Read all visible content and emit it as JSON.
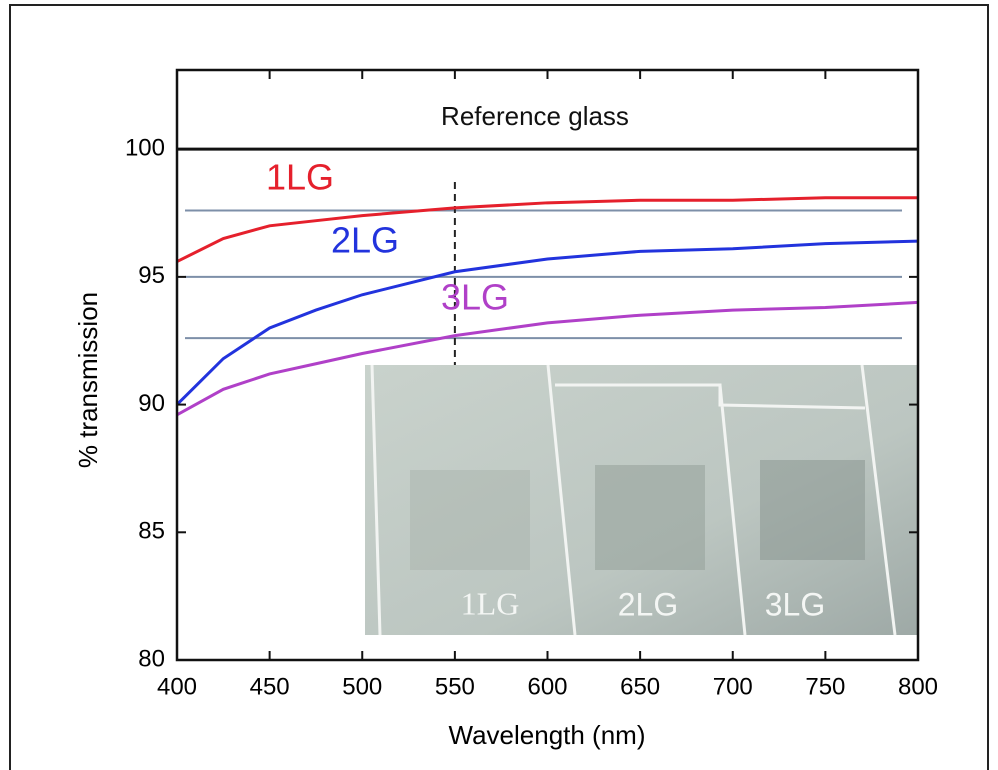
{
  "chart_data": {
    "type": "line",
    "xlabel": "Wavelength (nm)",
    "ylabel": "% transmission",
    "x": [
      400,
      425,
      450,
      475,
      500,
      550,
      600,
      650,
      700,
      750,
      800
    ],
    "series": [
      {
        "name": "Reference glass",
        "color": "#111111",
        "values": [
          100,
          100,
          100,
          100,
          100,
          100,
          100,
          100,
          100,
          100,
          100
        ]
      },
      {
        "name": "1LG",
        "color": "#e5202c",
        "values": [
          95.6,
          96.5,
          97.0,
          97.2,
          97.4,
          97.7,
          97.9,
          98.0,
          98.0,
          98.1,
          98.1
        ]
      },
      {
        "name": "2LG",
        "color": "#2233dd",
        "values": [
          90.0,
          91.8,
          93.0,
          93.7,
          94.3,
          95.2,
          95.7,
          96.0,
          96.1,
          96.3,
          96.4
        ]
      },
      {
        "name": "3LG",
        "color": "#b040c8",
        "values": [
          89.6,
          90.6,
          91.2,
          91.6,
          92.0,
          92.7,
          93.2,
          93.5,
          93.7,
          93.8,
          94.0
        ]
      }
    ],
    "reference_lines": [
      97.6,
      95.0,
      92.6
    ],
    "marker_x": 550,
    "inset_labels": [
      "1LG",
      "2LG",
      "3LG"
    ],
    "xlim": [
      400,
      800
    ],
    "xticks": [
      400,
      450,
      500,
      550,
      600,
      650,
      700,
      750,
      800
    ],
    "ylim": [
      80,
      103.1
    ],
    "yticks": [
      80,
      85,
      90,
      95,
      100
    ]
  }
}
